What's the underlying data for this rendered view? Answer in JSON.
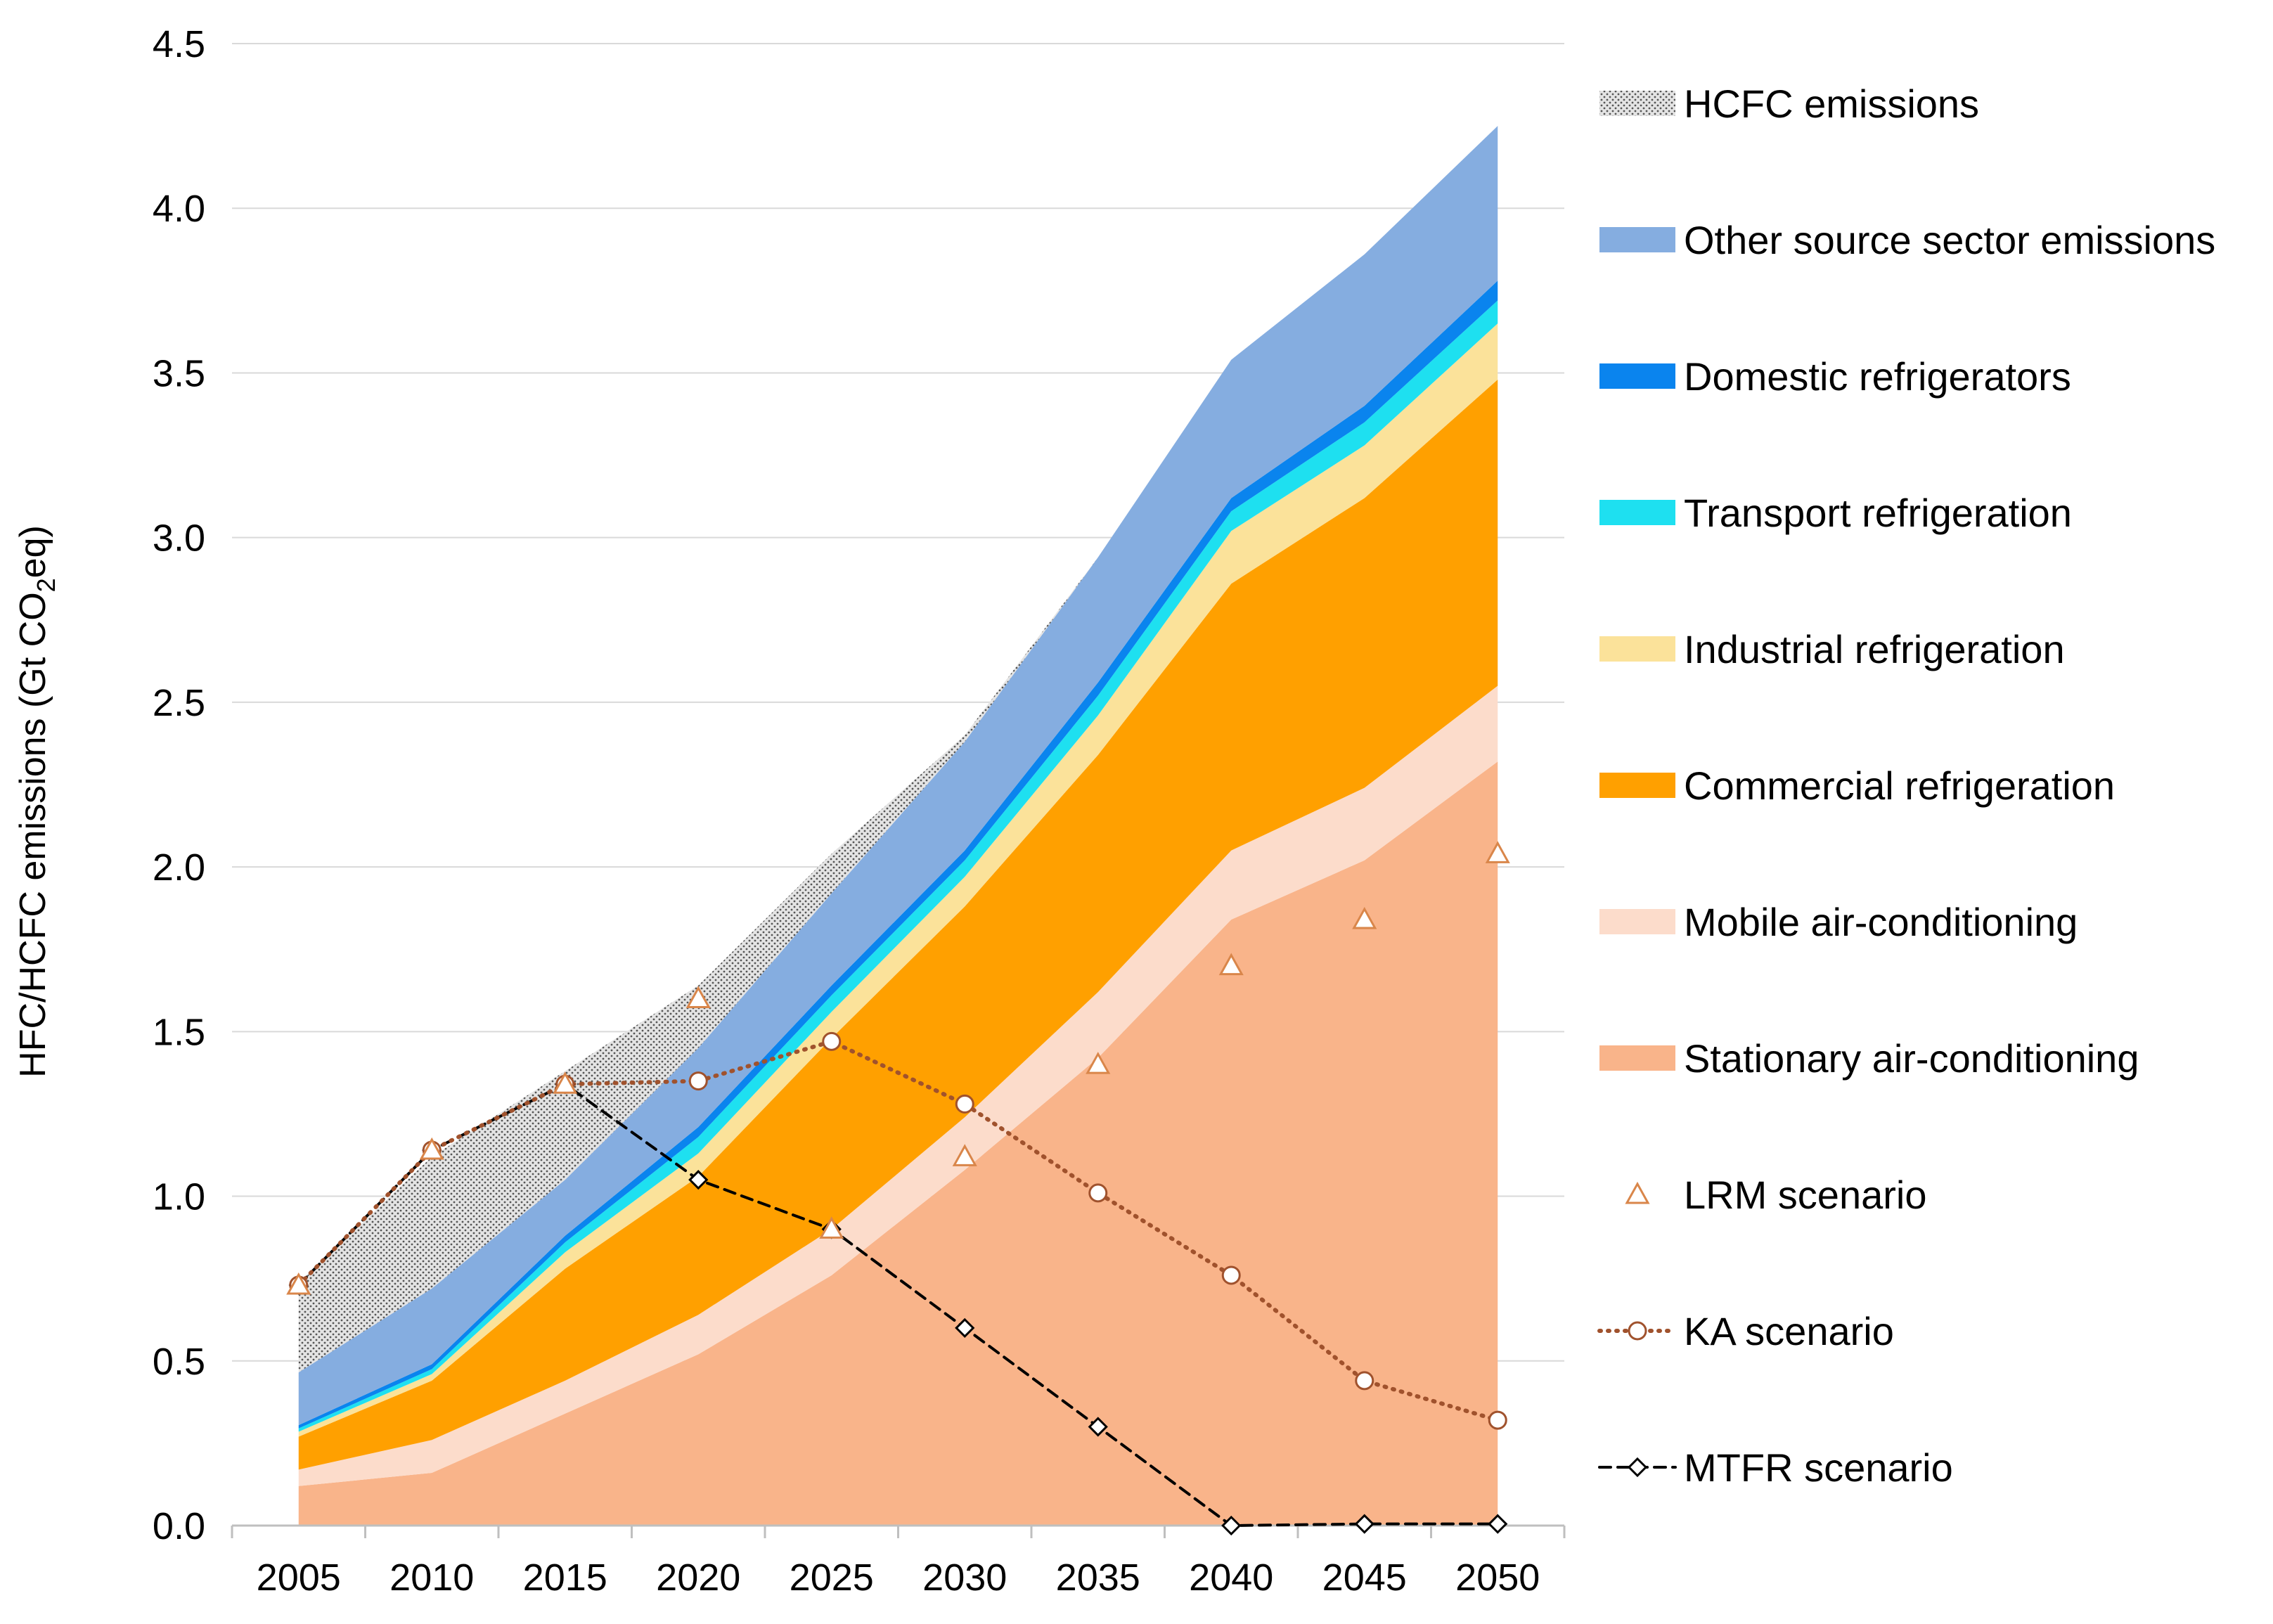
{
  "chart_data": {
    "type": "area",
    "title": "",
    "xlabel": "",
    "ylabel": {
      "main": "HFC/HCFC emissions (Gt CO",
      "sub": "2",
      "tail": "eq)"
    },
    "x": [
      2005,
      2010,
      2015,
      2020,
      2025,
      2030,
      2035,
      2040,
      2045,
      2050
    ],
    "x_tick_labels": [
      "2005",
      "2010",
      "2015",
      "2020",
      "2025",
      "2030",
      "2035",
      "2040",
      "2045",
      "2050"
    ],
    "ylim": [
      0,
      4.5
    ],
    "y_ticks": [
      0,
      0.5,
      1.0,
      1.5,
      2.0,
      2.5,
      3.0,
      3.5,
      4.0,
      4.5
    ],
    "y_tick_labels": [
      "0.0",
      "0.5",
      "1.0",
      "1.5",
      "2.0",
      "2.5",
      "3.0",
      "3.5",
      "4.0",
      "4.5"
    ],
    "grid": "horizontal",
    "legend_position": "right",
    "stacked_series": [
      {
        "name": "Stationary air-conditioning",
        "color": "#F9B48A",
        "values": [
          0.12,
          0.16,
          0.34,
          0.52,
          0.76,
          1.08,
          1.42,
          1.84,
          2.02,
          2.32
        ]
      },
      {
        "name": "Mobile air-conditioning",
        "color": "#FCDCCB",
        "values": [
          0.05,
          0.1,
          0.1,
          0.12,
          0.14,
          0.16,
          0.2,
          0.21,
          0.22,
          0.23
        ]
      },
      {
        "name": "Commercial refrigeration",
        "color": "#FFA000",
        "values": [
          0.1,
          0.18,
          0.34,
          0.42,
          0.58,
          0.64,
          0.72,
          0.81,
          0.88,
          0.93
        ]
      },
      {
        "name": "Industrial refrigeration",
        "color": "#FBE29A",
        "values": [
          0.015,
          0.02,
          0.05,
          0.07,
          0.08,
          0.09,
          0.12,
          0.16,
          0.16,
          0.17
        ]
      },
      {
        "name": "Transport refrigeration",
        "color": "#1EE0F0",
        "values": [
          0.01,
          0.015,
          0.03,
          0.05,
          0.05,
          0.05,
          0.06,
          0.06,
          0.07,
          0.07
        ]
      },
      {
        "name": "Domestic refrigerators",
        "color": "#0A84EE",
        "values": [
          0.01,
          0.015,
          0.02,
          0.03,
          0.03,
          0.03,
          0.04,
          0.04,
          0.05,
          0.06
        ]
      },
      {
        "name": "Other source sector emissions",
        "color": "#85ADE0",
        "values": [
          0.16,
          0.23,
          0.17,
          0.24,
          0.28,
          0.33,
          0.38,
          0.42,
          0.46,
          0.47
        ]
      },
      {
        "name": "HCFC emissions",
        "color": "#C0C0C0",
        "pattern": "dots",
        "values": [
          0.27,
          0.4,
          0.33,
          0.19,
          0.12,
          0.02,
          0.0,
          0.0,
          0.0,
          0.0
        ]
      }
    ],
    "scenarios": [
      {
        "name": "LRM scenario",
        "marker": "triangle",
        "line": "none",
        "color": "#D9864A",
        "values": [
          0.73,
          1.14,
          1.34,
          1.6,
          0.9,
          1.12,
          1.4,
          1.7,
          1.84,
          2.04
        ]
      },
      {
        "name": "KA scenario",
        "marker": "circle",
        "line": "dotted",
        "color": "#A0522D",
        "values": [
          0.73,
          1.14,
          1.34,
          1.35,
          1.47,
          1.28,
          1.01,
          0.76,
          0.44,
          0.32
        ]
      },
      {
        "name": "MTFR scenario",
        "marker": "diamond",
        "line": "dashed",
        "color": "#000000",
        "values": [
          0.73,
          1.14,
          1.34,
          1.05,
          0.9,
          0.6,
          0.3,
          0.0,
          0.005,
          0.005
        ]
      }
    ],
    "legend": [
      "HCFC emissions",
      "Other source sector emissions",
      "Domestic refrigerators",
      "Transport refrigeration",
      "Industrial refrigeration",
      "Commercial refrigeration",
      "Mobile air-conditioning",
      "Stationary air-conditioning",
      "LRM scenario",
      "KA scenario",
      "MTFR scenario"
    ]
  }
}
